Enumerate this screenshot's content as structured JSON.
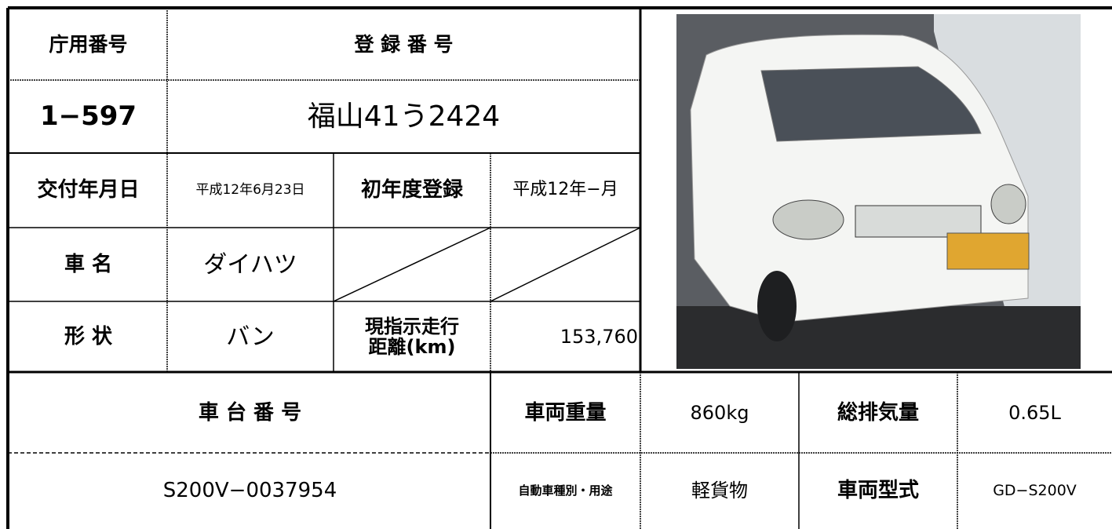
{
  "table": {
    "top_rows": [
      [
        "庁用番号",
        "登 録 番 号"
      ],
      [
        "1−597",
        "福山41う2424"
      ],
      [
        "交付年月日",
        "平成12年6月23日",
        "初年度登録",
        "平成12年−月"
      ],
      [
        "車 名",
        "ダイハツ"
      ],
      [
        "形 状",
        "バン",
        "現指示走行\n距離(km)",
        "153,760"
      ]
    ],
    "bottom_rows": [
      [
        "車 台 番 号",
        "車両重量",
        "860kg",
        "総排気量",
        "0.65L"
      ],
      [
        "S200V−0037954",
        "自動車種別・用途",
        "軽貨物",
        "車両型式",
        "GD−S200V"
      ]
    ]
  }
}
